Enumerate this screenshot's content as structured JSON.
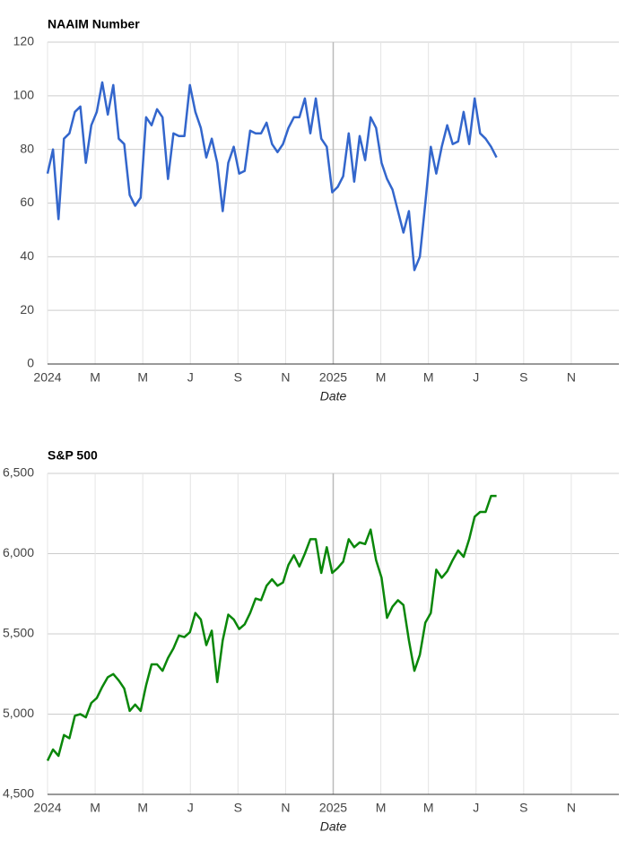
{
  "chart_data": [
    {
      "type": "line",
      "title": "NAAIM Number",
      "xlabel": "Date",
      "xlim": [
        0,
        24
      ],
      "xticks": [
        {
          "value": 0,
          "label": "2024"
        },
        {
          "value": 2,
          "label": "M"
        },
        {
          "value": 4,
          "label": "M"
        },
        {
          "value": 6,
          "label": "J"
        },
        {
          "value": 8,
          "label": "S"
        },
        {
          "value": 10,
          "label": "N"
        },
        {
          "value": 12,
          "label": "2025"
        },
        {
          "value": 14,
          "label": "M"
        },
        {
          "value": 16,
          "label": "M"
        },
        {
          "value": 18,
          "label": "J"
        },
        {
          "value": 20,
          "label": "S"
        },
        {
          "value": 22,
          "label": "N"
        }
      ],
      "ylim": [
        0,
        120
      ],
      "yticks": [
        0,
        20,
        40,
        60,
        80,
        100,
        120
      ],
      "grid": true,
      "x": [
        0,
        0.23,
        0.46,
        0.69,
        0.92,
        1.15,
        1.38,
        1.61,
        1.84,
        2.07,
        2.3,
        2.53,
        2.76,
        2.99,
        3.22,
        3.45,
        3.68,
        3.91,
        4.14,
        4.37,
        4.6,
        4.83,
        5.06,
        5.29,
        5.52,
        5.75,
        5.98,
        6.21,
        6.44,
        6.67,
        6.9,
        7.13,
        7.36,
        7.59,
        7.82,
        8.05,
        8.28,
        8.51,
        8.74,
        8.97,
        9.2,
        9.43,
        9.66,
        9.89,
        10.12,
        10.35,
        10.58,
        10.81,
        11.04,
        11.27,
        11.5,
        11.73,
        11.96,
        12.19,
        12.42,
        12.65,
        12.88,
        13.11,
        13.34,
        13.57,
        13.8,
        14.03,
        14.26,
        14.49,
        14.72,
        14.95,
        15.18,
        15.41,
        15.64,
        15.87,
        16.1,
        16.33,
        16.56,
        16.79,
        17.02,
        17.25,
        17.48,
        17.71,
        17.94,
        18.17,
        18.4,
        18.63,
        18.86
      ],
      "series": [
        {
          "color": "#3366cc",
          "values": [
            71,
            80,
            54,
            84,
            86,
            94,
            96,
            75,
            89,
            94,
            105,
            93,
            104,
            84,
            82,
            63,
            59,
            62,
            92,
            89,
            95,
            92,
            69,
            86,
            85,
            85,
            104,
            94,
            88,
            77,
            84,
            75,
            57,
            75,
            81,
            71,
            72,
            87,
            86,
            86,
            90,
            82,
            79,
            82,
            88,
            92,
            92,
            99,
            86,
            99,
            84,
            81,
            64,
            66,
            70,
            86,
            68,
            85,
            76,
            92,
            88,
            75,
            69,
            65,
            57,
            49,
            57,
            35,
            40,
            60,
            81,
            71,
            81,
            89,
            82,
            83,
            94,
            82,
            99,
            86,
            84,
            81,
            77
          ]
        }
      ]
    },
    {
      "type": "line",
      "title": "S&P 500",
      "xlabel": "Date",
      "xlim": [
        0,
        24
      ],
      "xticks": [
        {
          "value": 0,
          "label": "2024"
        },
        {
          "value": 2,
          "label": "M"
        },
        {
          "value": 4,
          "label": "M"
        },
        {
          "value": 6,
          "label": "J"
        },
        {
          "value": 8,
          "label": "S"
        },
        {
          "value": 10,
          "label": "N"
        },
        {
          "value": 12,
          "label": "2025"
        },
        {
          "value": 14,
          "label": "M"
        },
        {
          "value": 16,
          "label": "M"
        },
        {
          "value": 18,
          "label": "J"
        },
        {
          "value": 20,
          "label": "S"
        },
        {
          "value": 22,
          "label": "N"
        }
      ],
      "ylim": [
        4500,
        6500
      ],
      "yticks": [
        {
          "value": 4500,
          "label": "4,500"
        },
        {
          "value": 5000,
          "label": "5,000"
        },
        {
          "value": 5500,
          "label": "5,500"
        },
        {
          "value": 6000,
          "label": "6,000"
        },
        {
          "value": 6500,
          "label": "6,500"
        }
      ],
      "grid": true,
      "x": [
        0,
        0.23,
        0.46,
        0.69,
        0.92,
        1.15,
        1.38,
        1.61,
        1.84,
        2.07,
        2.3,
        2.53,
        2.76,
        2.99,
        3.22,
        3.45,
        3.68,
        3.91,
        4.14,
        4.37,
        4.6,
        4.83,
        5.06,
        5.29,
        5.52,
        5.75,
        5.98,
        6.21,
        6.44,
        6.67,
        6.9,
        7.13,
        7.36,
        7.59,
        7.82,
        8.05,
        8.28,
        8.51,
        8.74,
        8.97,
        9.2,
        9.43,
        9.66,
        9.89,
        10.12,
        10.35,
        10.58,
        10.81,
        11.04,
        11.27,
        11.5,
        11.73,
        11.96,
        12.19,
        12.42,
        12.65,
        12.88,
        13.11,
        13.34,
        13.57,
        13.8,
        14.03,
        14.26,
        14.49,
        14.72,
        14.95,
        15.18,
        15.41,
        15.64,
        15.87,
        16.1,
        16.33,
        16.56,
        16.79,
        17.02,
        17.25,
        17.48,
        17.71,
        17.94,
        18.17,
        18.4,
        18.63,
        18.86
      ],
      "series": [
        {
          "color": "#0a870a",
          "values": [
            4710,
            4780,
            4740,
            4870,
            4850,
            4990,
            5000,
            4980,
            5070,
            5100,
            5170,
            5230,
            5250,
            5210,
            5160,
            5020,
            5060,
            5020,
            5180,
            5310,
            5310,
            5270,
            5350,
            5410,
            5490,
            5480,
            5510,
            5630,
            5590,
            5430,
            5520,
            5200,
            5460,
            5620,
            5590,
            5530,
            5560,
            5630,
            5720,
            5710,
            5800,
            5840,
            5800,
            5820,
            5930,
            5990,
            5920,
            6000,
            6090,
            6090,
            5880,
            6040,
            5880,
            5910,
            5950,
            6090,
            6040,
            6070,
            6060,
            6150,
            5960,
            5850,
            5600,
            5670,
            5710,
            5680,
            5460,
            5270,
            5370,
            5570,
            5630,
            5900,
            5850,
            5890,
            5960,
            6020,
            5980,
            6090,
            6230,
            6260,
            6260,
            6360,
            6360
          ]
        }
      ]
    }
  ]
}
